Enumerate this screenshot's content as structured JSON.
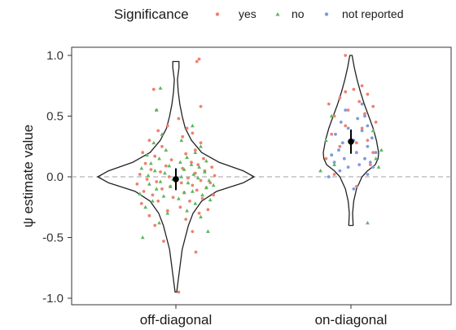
{
  "chart_data": {
    "type": "scatter",
    "subtype": "violin-with-jitter",
    "ylabel": "ψ estimate value",
    "ylim": [
      -1.05,
      1.05
    ],
    "yticks": [
      1.0,
      0.5,
      0.0,
      -0.5,
      -1.0
    ],
    "ytick_labels": [
      "1.0",
      "0.5",
      "0.0",
      "-0.5",
      "-1.0"
    ],
    "categories": [
      "off-diagonal",
      "on-diagonal"
    ],
    "reference_line": 0.0,
    "legend": {
      "title": "Significance",
      "position": "top",
      "entries": [
        {
          "label": "yes",
          "color": "#f08070",
          "shape": "circle"
        },
        {
          "label": "no",
          "color": "#5cb85c",
          "shape": "triangle"
        },
        {
          "label": "not reported",
          "color": "#7b9be0",
          "shape": "circle"
        }
      ]
    },
    "summary": [
      {
        "category": "off-diagonal",
        "mean": -0.02,
        "ci": [
          -0.11,
          0.07
        ]
      },
      {
        "category": "on-diagonal",
        "mean": 0.29,
        "ci": [
          0.19,
          0.39
        ]
      }
    ],
    "violins": [
      {
        "category": "off-diagonal",
        "ymin": -0.95,
        "ymax": 0.95,
        "profile": [
          [
            -0.95,
            0.01
          ],
          [
            -0.85,
            0.03
          ],
          [
            -0.75,
            0.05
          ],
          [
            -0.6,
            0.08
          ],
          [
            -0.5,
            0.12
          ],
          [
            -0.4,
            0.16
          ],
          [
            -0.3,
            0.22
          ],
          [
            -0.2,
            0.33
          ],
          [
            -0.12,
            0.52
          ],
          [
            -0.05,
            0.86
          ],
          [
            0.0,
            1.0
          ],
          [
            0.05,
            0.86
          ],
          [
            0.12,
            0.55
          ],
          [
            0.2,
            0.33
          ],
          [
            0.3,
            0.2
          ],
          [
            0.4,
            0.12
          ],
          [
            0.5,
            0.08
          ],
          [
            0.6,
            0.05
          ],
          [
            0.7,
            0.03
          ],
          [
            0.8,
            0.02
          ],
          [
            0.9,
            0.04
          ],
          [
            0.95,
            0.04
          ]
        ]
      },
      {
        "category": "on-diagonal",
        "ymin": -0.4,
        "ymax": 1.0,
        "profile": [
          [
            -0.4,
            0.04
          ],
          [
            -0.3,
            0.03
          ],
          [
            -0.2,
            0.05
          ],
          [
            -0.1,
            0.1
          ],
          [
            0.0,
            0.2
          ],
          [
            0.05,
            0.3
          ],
          [
            0.1,
            0.44
          ],
          [
            0.15,
            0.49
          ],
          [
            0.2,
            0.5
          ],
          [
            0.25,
            0.48
          ],
          [
            0.3,
            0.46
          ],
          [
            0.4,
            0.4
          ],
          [
            0.5,
            0.32
          ],
          [
            0.6,
            0.24
          ],
          [
            0.7,
            0.17
          ],
          [
            0.8,
            0.11
          ],
          [
            0.9,
            0.06
          ],
          [
            1.0,
            0.02
          ]
        ]
      }
    ],
    "series": [
      {
        "name": "yes",
        "category": "off-diagonal",
        "values": [
          -0.95,
          -0.62,
          -0.53,
          -0.45,
          -0.4,
          -0.35,
          -0.32,
          -0.3,
          -0.28,
          -0.27,
          -0.25,
          -0.22,
          -0.2,
          -0.2,
          -0.18,
          -0.17,
          -0.15,
          -0.15,
          -0.13,
          -0.12,
          -0.11,
          -0.1,
          -0.09,
          -0.08,
          -0.07,
          -0.06,
          -0.05,
          -0.05,
          -0.04,
          -0.03,
          -0.02,
          -0.01,
          0.0,
          0.01,
          0.02,
          0.03,
          0.04,
          0.05,
          0.06,
          0.07,
          0.08,
          0.09,
          0.1,
          0.11,
          0.12,
          0.14,
          0.15,
          0.17,
          0.19,
          0.2,
          0.22,
          0.25,
          0.28,
          0.3,
          0.33,
          0.36,
          0.38,
          0.4,
          0.42,
          0.48,
          0.55,
          0.58,
          0.72,
          0.95,
          0.97
        ],
        "jitter": [
          0.05,
          0.36,
          -0.22,
          0.3,
          -0.38,
          0.18,
          -0.48,
          0.42,
          -0.15,
          0.58,
          0.08,
          -0.62,
          0.25,
          -0.32,
          0.48,
          -0.05,
          0.68,
          -0.42,
          0.15,
          -0.58,
          0.38,
          -0.25,
          0.55,
          -0.1,
          0.3,
          -0.7,
          0.1,
          0.62,
          -0.35,
          0.45,
          -0.52,
          0.22,
          -0.12,
          0.7,
          -0.65,
          0.35,
          -0.28,
          0.52,
          -0.45,
          0.12,
          0.65,
          -0.18,
          0.4,
          -0.55,
          0.28,
          -0.08,
          0.5,
          -0.38,
          0.18,
          -0.6,
          0.35,
          -0.25,
          0.45,
          -0.48,
          0.12,
          0.3,
          -0.32,
          0.2,
          -0.15,
          0.05,
          -0.35,
          0.45,
          -0.4,
          0.38,
          0.42
        ]
      },
      {
        "name": "no",
        "category": "off-diagonal",
        "values": [
          -0.5,
          -0.45,
          -0.38,
          -0.33,
          -0.3,
          -0.28,
          -0.25,
          -0.22,
          -0.2,
          -0.19,
          -0.18,
          -0.16,
          -0.15,
          -0.14,
          -0.13,
          -0.12,
          -0.1,
          -0.09,
          -0.08,
          -0.07,
          -0.06,
          -0.05,
          -0.04,
          -0.03,
          -0.02,
          -0.01,
          0.0,
          0.01,
          0.02,
          0.03,
          0.04,
          0.05,
          0.06,
          0.07,
          0.08,
          0.09,
          0.1,
          0.11,
          0.12,
          0.13,
          0.15,
          0.16,
          0.18,
          0.2,
          0.22,
          0.25,
          0.28,
          0.3,
          0.35,
          0.42,
          0.55,
          0.73
        ],
        "jitter": [
          -0.6,
          0.58,
          -0.3,
          0.45,
          -0.15,
          0.2,
          -0.55,
          0.35,
          -0.42,
          0.62,
          0.05,
          -0.22,
          0.48,
          -0.65,
          0.15,
          0.3,
          -0.35,
          0.55,
          -0.1,
          0.68,
          -0.48,
          0.22,
          -0.28,
          0.6,
          -0.05,
          0.4,
          0.1,
          -0.5,
          0.32,
          -0.2,
          0.52,
          -0.38,
          0.15,
          -0.62,
          0.42,
          -0.12,
          0.28,
          -0.45,
          0.08,
          0.55,
          -0.3,
          0.2,
          -0.52,
          0.35,
          -0.18,
          0.45,
          -0.4,
          0.1,
          -0.25,
          0.3,
          -0.35,
          -0.28
        ]
      },
      {
        "name": "yes",
        "category": "on-diagonal",
        "values": [
          -0.08,
          0.02,
          0.1,
          0.15,
          0.2,
          0.25,
          0.28,
          0.3,
          0.35,
          0.4,
          0.42,
          0.45,
          0.5,
          0.52,
          0.55,
          0.58,
          0.6,
          0.62,
          0.65,
          0.68,
          0.7,
          0.72,
          0.75,
          1.0
        ],
        "jitter": [
          0.1,
          -0.3,
          0.35,
          -0.45,
          0.4,
          -0.2,
          0.1,
          0.3,
          -0.35,
          0.2,
          -0.1,
          0.45,
          -0.3,
          0.25,
          -0.05,
          0.4,
          -0.4,
          0.15,
          -0.2,
          0.3,
          -0.1,
          0.05,
          0.2,
          -0.1
        ]
      },
      {
        "name": "no",
        "category": "on-diagonal",
        "values": [
          -0.38,
          0.05,
          0.08,
          0.1,
          0.15,
          0.22,
          0.3,
          0.38,
          0.5
        ],
        "jitter": [
          0.3,
          -0.55,
          0.5,
          -0.3,
          0.45,
          0.55,
          -0.45,
          0.4,
          -0.35
        ]
      },
      {
        "name": "not reported",
        "category": "on-diagonal",
        "values": [
          -0.1,
          0.0,
          0.02,
          0.05,
          0.08,
          0.08,
          0.1,
          0.12,
          0.12,
          0.15,
          0.15,
          0.18,
          0.2,
          0.2,
          0.22,
          0.25,
          0.28,
          0.3,
          0.32,
          0.35,
          0.38,
          0.4,
          0.42,
          0.45,
          0.48,
          0.5,
          0.55,
          0.6
        ],
        "jitter": [
          0.05,
          -0.4,
          0.3,
          -0.2,
          0.4,
          -0.05,
          0.15,
          -0.3,
          0.35,
          -0.12,
          0.25,
          -0.35,
          0.1,
          0.45,
          -0.22,
          0.3,
          -0.15,
          0.05,
          0.38,
          -0.28,
          0.2,
          -0.05,
          0.3,
          -0.18,
          0.12,
          0.25,
          -0.1,
          0.2
        ]
      }
    ]
  }
}
